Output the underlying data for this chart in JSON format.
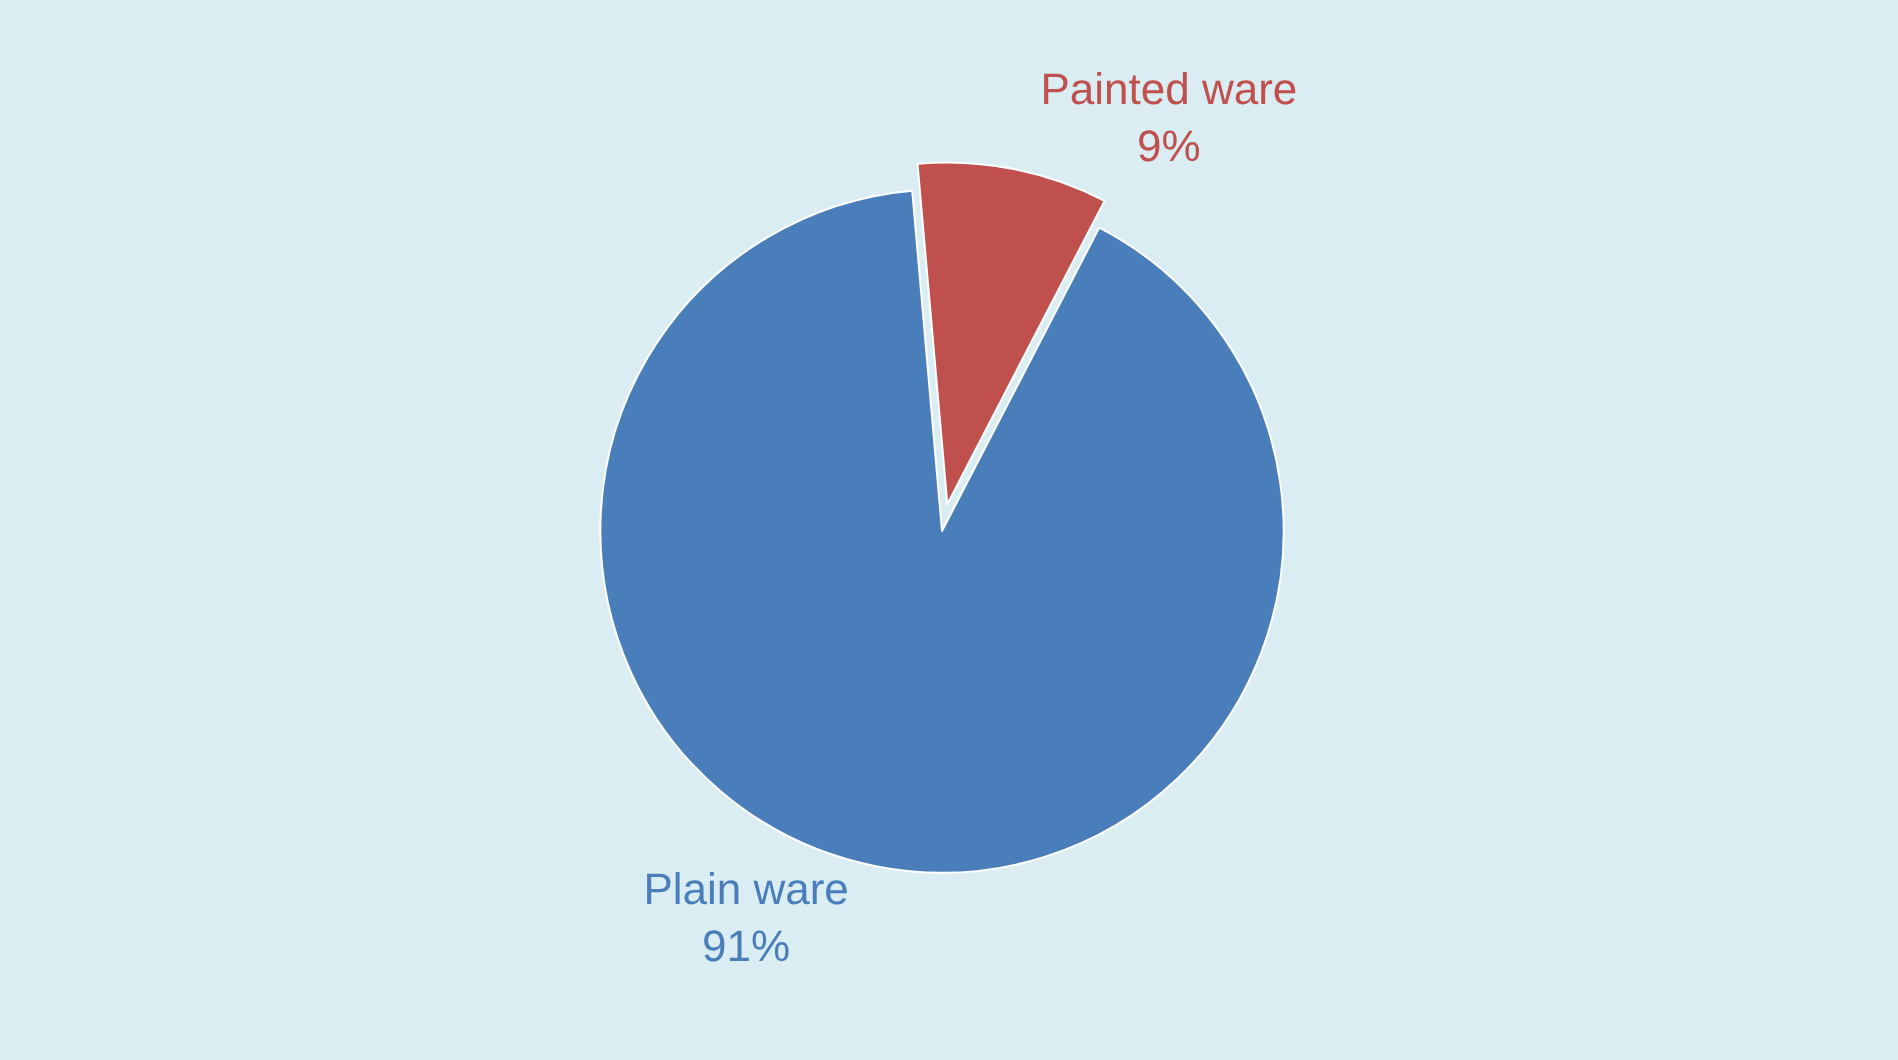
{
  "chart_data": {
    "type": "pie",
    "categories": [
      "Painted ware",
      "Plain ware"
    ],
    "values": [
      9,
      91
    ],
    "colors": [
      "#c0504d",
      "#4a7ebb"
    ],
    "value_labels": [
      "9%",
      "91%"
    ],
    "legend": false
  }
}
